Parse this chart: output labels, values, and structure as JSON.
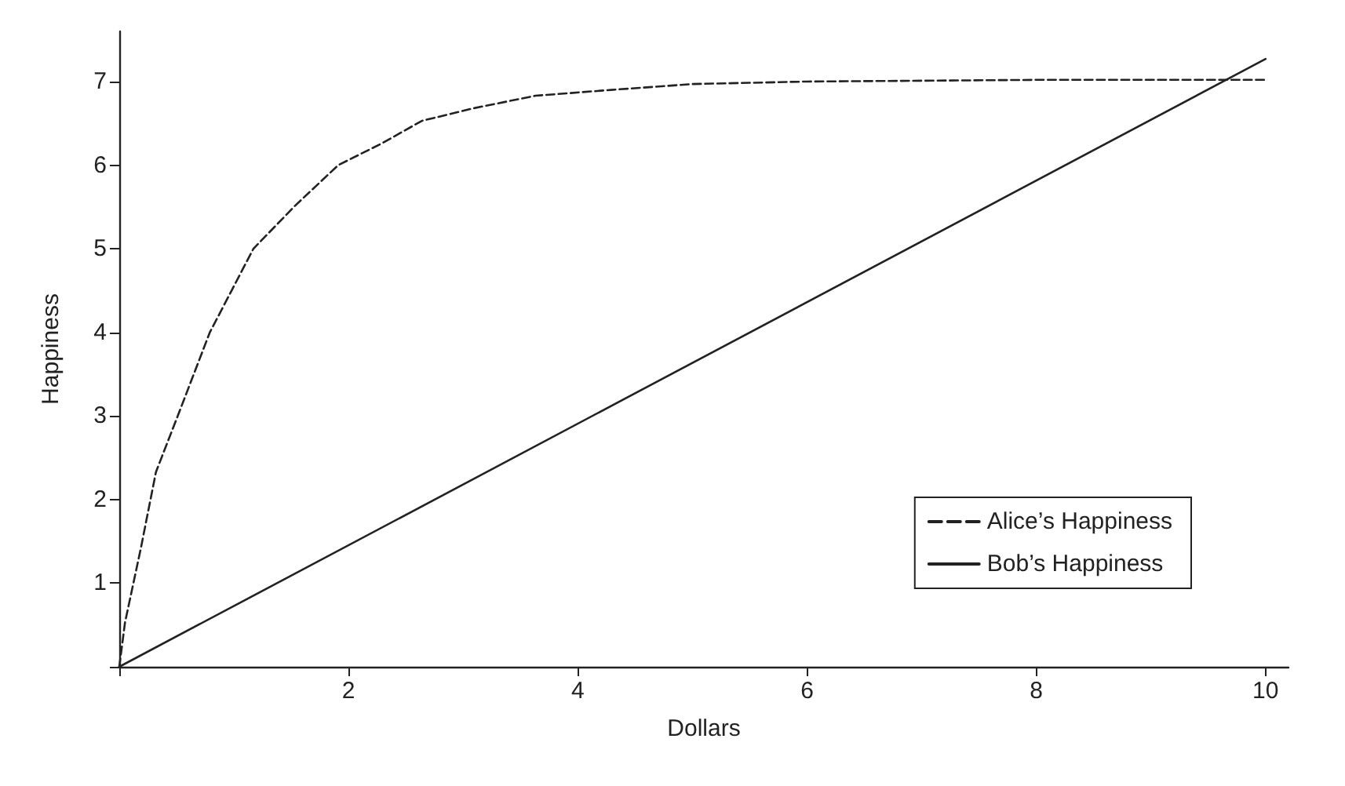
{
  "chart_data": {
    "type": "line",
    "xlabel": "Dollars",
    "ylabel": "Happiness",
    "xlim": [
      0,
      10.2
    ],
    "ylim": [
      0,
      7.6
    ],
    "xticks": [
      {
        "value": 0,
        "label": null
      },
      2,
      4,
      6,
      8,
      10
    ],
    "yticks": [
      {
        "value": 0,
        "label": null
      },
      1,
      2,
      3,
      4,
      5,
      6,
      7
    ],
    "grid": false,
    "legend": "bottom right",
    "marker": "none",
    "series": [
      {
        "name": "Alice’s Happiness",
        "color": "#222222",
        "line_style": "dashed",
        "x": [
          0,
          0.05,
          0.19,
          0.32,
          0.51,
          0.79,
          1.17,
          1.53,
          1.91,
          2.29,
          2.64,
          3.09,
          3.63,
          4.29,
          5,
          6,
          8,
          10
        ],
        "values": [
          0,
          0.53,
          1.43,
          2.33,
          3.0,
          4.0,
          5.0,
          5.51,
          6.0,
          6.26,
          6.53,
          6.68,
          6.83,
          6.9,
          6.97,
          7.0,
          7.02,
          7.02
        ]
      },
      {
        "name": "Bob’s Happiness",
        "color": "#222222",
        "line_style": "solid",
        "x": [
          0,
          10
        ],
        "values": [
          0,
          7.27
        ]
      }
    ]
  }
}
